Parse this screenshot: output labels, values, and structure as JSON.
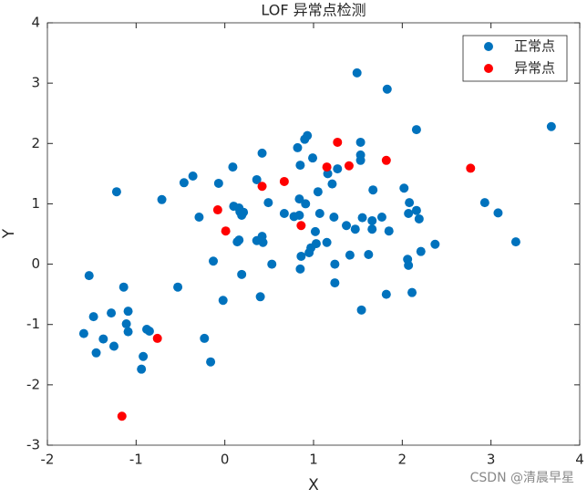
{
  "chart_data": {
    "type": "scatter",
    "title": "LOF 异常点检测",
    "x_label": "X",
    "y_label": "Y",
    "xlim": [
      -2,
      4
    ],
    "ylim": [
      -3,
      4
    ],
    "xticks": [
      -2,
      -1,
      0,
      1,
      2,
      3,
      4
    ],
    "yticks": [
      -3,
      -2,
      -1,
      0,
      1,
      2,
      3,
      4
    ],
    "legend": "upper right",
    "series": [
      {
        "name": "正常点",
        "color": "#0072bd",
        "x": [
          1.49,
          1.83,
          2.16,
          3.68,
          0.93,
          0.9,
          1.53,
          0.82,
          0.42,
          1.53,
          1.53,
          0.85,
          0.09,
          0.99,
          1.27,
          1.16,
          -0.36,
          -0.46,
          -1.22,
          -0.71,
          -0.07,
          0.36,
          1.21,
          1.05,
          1.67,
          2.02,
          2.08,
          0.84,
          0.91,
          0.1,
          0.16,
          0.17,
          0.19,
          0.21,
          0.49,
          0.67,
          0.78,
          0.84,
          1.07,
          1.23,
          -0.29,
          2.16,
          2.07,
          2.19,
          1.55,
          1.66,
          1.77,
          1.37,
          1.47,
          1.66,
          1.85,
          1.02,
          0.42,
          0.16,
          0.14,
          0.36,
          0.43,
          1.03,
          1.15,
          0.97,
          0.95,
          0.86,
          1.41,
          1.62,
          2.37,
          2.21,
          2.06,
          2.07,
          -0.13,
          0.53,
          1.24,
          0.85,
          0.19,
          -1.53,
          -0.53,
          -1.14,
          1.24,
          2.11,
          1.82,
          0.4,
          -0.02,
          1.54,
          -1.09,
          -1.28,
          -1.48,
          -1.11,
          -1.09,
          -1.59,
          -0.88,
          -0.85,
          -1.37,
          -1.25,
          -0.23,
          -1.45,
          -0.92,
          -0.16,
          -0.94,
          2.93,
          3.08,
          3.28
        ],
        "y": [
          3.17,
          2.9,
          2.23,
          2.28,
          2.13,
          2.07,
          2.02,
          1.93,
          1.84,
          1.81,
          1.72,
          1.64,
          1.61,
          1.76,
          1.58,
          1.5,
          1.46,
          1.35,
          1.2,
          1.07,
          1.34,
          1.4,
          1.33,
          1.2,
          1.23,
          1.26,
          1.02,
          1.08,
          1.0,
          0.96,
          0.93,
          0.87,
          0.81,
          0.86,
          1.02,
          0.84,
          0.79,
          0.81,
          0.84,
          0.78,
          0.78,
          0.89,
          0.84,
          0.75,
          0.77,
          0.72,
          0.78,
          0.64,
          0.58,
          0.58,
          0.55,
          0.54,
          0.46,
          0.4,
          0.37,
          0.39,
          0.36,
          0.34,
          0.36,
          0.27,
          0.19,
          0.13,
          0.15,
          0.16,
          0.33,
          0.21,
          0.08,
          -0.02,
          0.05,
          0.0,
          0.0,
          -0.08,
          -0.17,
          -0.19,
          -0.38,
          -0.38,
          -0.31,
          -0.47,
          -0.5,
          -0.54,
          -0.6,
          -0.76,
          -0.78,
          -0.81,
          -0.87,
          -0.99,
          -1.12,
          -1.15,
          -1.08,
          -1.11,
          -1.24,
          -1.36,
          -1.23,
          -1.47,
          -1.53,
          -1.62,
          -1.74,
          1.02,
          0.85,
          0.37
        ]
      },
      {
        "name": "异常点",
        "color": "#ff0000",
        "x": [
          1.27,
          1.15,
          1.4,
          1.82,
          2.77,
          0.67,
          0.42,
          -0.08,
          0.01,
          0.86,
          -0.76,
          -1.16
        ],
        "y": [
          2.02,
          1.61,
          1.63,
          1.72,
          1.59,
          1.37,
          1.29,
          0.9,
          0.55,
          0.64,
          -1.23,
          -2.52
        ]
      }
    ],
    "watermark": "CSDN @清晨早星"
  }
}
